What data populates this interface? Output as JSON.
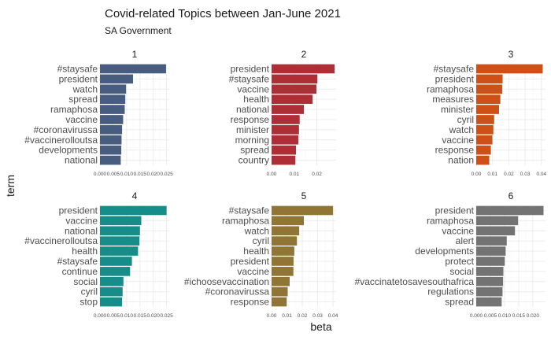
{
  "chart_data": {
    "type": "bar",
    "title": "Covid-related Topics between Jan-June 2021",
    "subtitle": "SA Government",
    "xlabel": "beta",
    "ylabel": "term",
    "grid": true,
    "facets": [
      {
        "label": "1",
        "color": "#475c7e",
        "xlim": [
          0,
          0.026
        ],
        "ticks": [
          0,
          0.005,
          0.01,
          0.015,
          0.02,
          0.025
        ],
        "tick_labels": [
          "0.000",
          "0.005",
          "0.010",
          "0.015",
          "0.020",
          "0.025"
        ],
        "terms": [
          "#staysafe",
          "president",
          "watch",
          "spread",
          "ramaphosa",
          "vaccine",
          "#coronavirussa",
          "#vaccinerolloutsa",
          "developments",
          "national"
        ],
        "values": [
          0.0248,
          0.0124,
          0.0098,
          0.0095,
          0.0093,
          0.0087,
          0.0083,
          0.0081,
          0.008,
          0.0078
        ]
      },
      {
        "label": "2",
        "color": "#ad2f35",
        "xlim": [
          0,
          0.0285
        ],
        "ticks": [
          0,
          0.01,
          0.02
        ],
        "tick_labels": [
          "0.00",
          "0.01",
          "0.02"
        ],
        "terms": [
          "president",
          "#staysafe",
          "vaccine",
          "health",
          "national",
          "response",
          "minister",
          "morning",
          "spread",
          "country"
        ],
        "values": [
          0.0278,
          0.0202,
          0.0198,
          0.0181,
          0.0143,
          0.0124,
          0.0121,
          0.0118,
          0.0108,
          0.0105
        ]
      },
      {
        "label": "3",
        "color": "#ce5017",
        "xlim": [
          0,
          0.0425
        ],
        "ticks": [
          0,
          0.01,
          0.02,
          0.03,
          0.04
        ],
        "tick_labels": [
          "0.00",
          "0.01",
          "0.02",
          "0.03",
          "0.04"
        ],
        "terms": [
          "#staysafe",
          "president",
          "ramaphosa",
          "measures",
          "minister",
          "cyril",
          "watch",
          "vaccine",
          "response",
          "nation"
        ],
        "values": [
          0.0408,
          0.0162,
          0.016,
          0.0148,
          0.014,
          0.011,
          0.0105,
          0.0099,
          0.009,
          0.008
        ]
      },
      {
        "label": "4",
        "color": "#178d8a",
        "xlim": [
          0,
          0.026
        ],
        "ticks": [
          0,
          0.005,
          0.01,
          0.015,
          0.02,
          0.025
        ],
        "tick_labels": [
          "0.000",
          "0.005",
          "0.010",
          "0.015",
          "0.020",
          "0.025"
        ],
        "terms": [
          "president",
          "vaccine",
          "national",
          "#vaccinerolloutsa",
          "health",
          "#staysafe",
          "continue",
          "social",
          "cyril",
          "stop"
        ],
        "values": [
          0.025,
          0.0155,
          0.015,
          0.0148,
          0.0143,
          0.012,
          0.0113,
          0.0088,
          0.0085,
          0.0083
        ]
      },
      {
        "label": "5",
        "color": "#907535",
        "xlim": [
          0,
          0.042
        ],
        "ticks": [
          0,
          0.01,
          0.02,
          0.03,
          0.04
        ],
        "tick_labels": [
          "0.00",
          "0.01",
          "0.02",
          "0.03",
          "0.04"
        ],
        "terms": [
          "#staysafe",
          "ramaphosa",
          "watch",
          "cyril",
          "health",
          "president",
          "vaccine",
          "#ichoosevaccination",
          "#coronavirussa",
          "response"
        ],
        "values": [
          0.04,
          0.021,
          0.018,
          0.0165,
          0.0148,
          0.0143,
          0.0142,
          0.0118,
          0.0105,
          0.0098
        ]
      },
      {
        "label": "6",
        "color": "#737373",
        "xlim": [
          0,
          0.0245
        ],
        "ticks": [
          0,
          0.005,
          0.01,
          0.015,
          0.02
        ],
        "tick_labels": [
          "0.000",
          "0.005",
          "0.010",
          "0.015",
          "0.020"
        ],
        "terms": [
          "president",
          "ramaphosa",
          "vaccine",
          "alert",
          "developments",
          "protect",
          "social",
          "#vaccinatetosavesouthafrica",
          "regulations",
          "spread"
        ],
        "values": [
          0.0238,
          0.0148,
          0.0137,
          0.0108,
          0.0104,
          0.0101,
          0.0096,
          0.0095,
          0.0093,
          0.009
        ]
      }
    ]
  }
}
